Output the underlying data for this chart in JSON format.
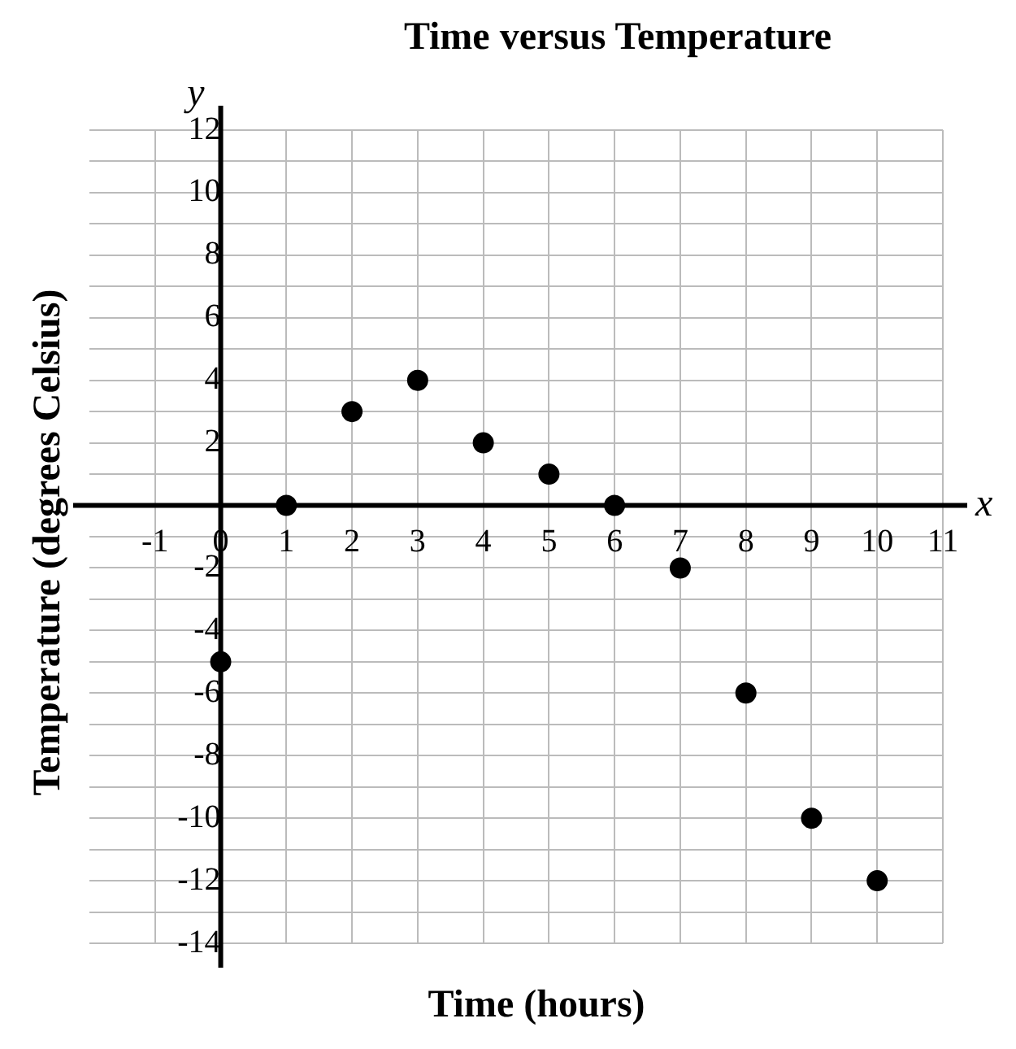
{
  "chart_data": {
    "type": "scatter",
    "title": "Time versus Temperature",
    "xlabel": "Time (hours)",
    "ylabel": "Temperature (degrees Celsius)",
    "annotations": [
      "x",
      "y"
    ],
    "x": [
      0,
      1,
      2,
      3,
      4,
      5,
      6,
      7,
      8,
      9,
      10
    ],
    "series": [
      {
        "color": "#000000",
        "values": [
          -5,
          0,
          3,
          4,
          2,
          1,
          0,
          -2,
          -6,
          -10,
          -12
        ]
      }
    ],
    "xlim": [
      -2,
      11
    ],
    "xticks": [
      -1,
      0,
      1,
      2,
      3,
      4,
      5,
      6,
      7,
      8,
      9,
      10,
      11
    ],
    "ylim": [
      -14,
      12
    ],
    "yticks": [
      -14,
      {
        "value": -13,
        "label": null
      },
      -12,
      {
        "value": -11,
        "label": null
      },
      -10,
      {
        "value": -9,
        "label": null
      },
      -8,
      {
        "value": -7,
        "label": null
      },
      -6,
      {
        "value": -5,
        "label": null
      },
      -4,
      {
        "value": -3,
        "label": null
      },
      -2,
      {
        "value": -1,
        "label": null
      },
      {
        "value": 0,
        "label": null
      },
      {
        "value": 1,
        "label": null
      },
      2,
      {
        "value": 3,
        "label": null
      },
      4,
      {
        "value": 5,
        "label": null
      },
      6,
      {
        "value": 7,
        "label": null
      },
      8,
      {
        "value": 9,
        "label": null
      },
      10,
      {
        "value": 11,
        "label": null
      },
      12
    ],
    "grid": true,
    "legend": false,
    "marker": "circle"
  }
}
